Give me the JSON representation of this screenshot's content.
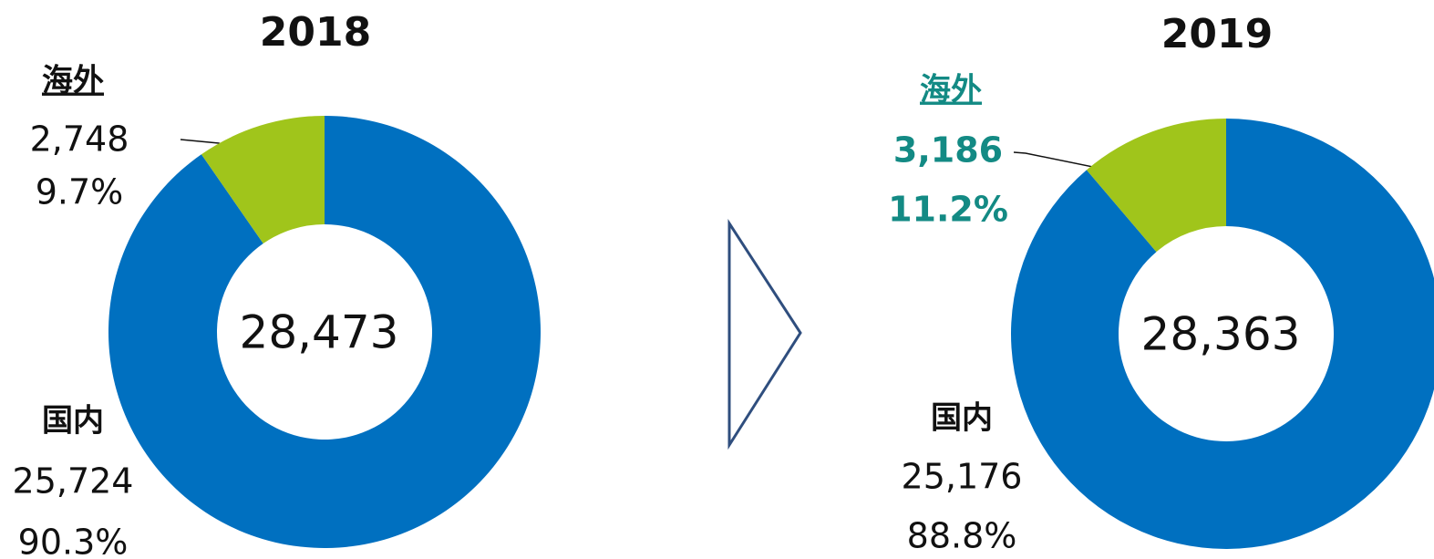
{
  "chart_data": [
    {
      "type": "donut",
      "title": "2018",
      "total_label": "28,473",
      "categories": [
        "国内",
        "海外"
      ],
      "values": [
        25724,
        2748
      ],
      "value_labels": [
        "25,724",
        "2,748"
      ],
      "percent_labels": [
        "90.3%",
        "9.7%"
      ],
      "colors": [
        "#0070c0",
        "#a0c51b"
      ]
    },
    {
      "type": "donut",
      "title": "2019",
      "total_label": "28,363",
      "categories": [
        "国内",
        "海外"
      ],
      "values": [
        25176,
        3186
      ],
      "value_labels": [
        "25,176",
        "3,186"
      ],
      "percent_labels": [
        "88.8%",
        "11.2%"
      ],
      "colors": [
        "#0070c0",
        "#a0c51b"
      ]
    }
  ]
}
